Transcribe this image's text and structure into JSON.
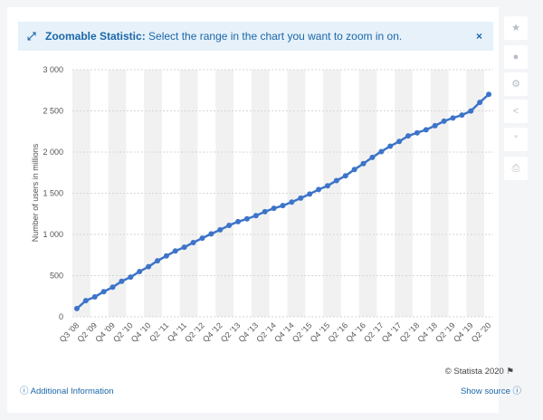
{
  "banner": {
    "title": "Zoomable Statistic:",
    "text": "Select the range in the chart you want to zoom in on."
  },
  "footer": {
    "copyright": "© Statista 2020",
    "additional_info": "Additional Information",
    "show_source": "Show source"
  },
  "chart_data": {
    "type": "line",
    "y_label": "Number of users in millions",
    "color": "#3d74c9",
    "categories": [
      "Q3 '08",
      null,
      "Q2 '09",
      null,
      "Q4 '09",
      null,
      "Q2 '10",
      null,
      "Q4 '10",
      null,
      "Q2 '11",
      null,
      "Q4 '11",
      null,
      "Q2 '12",
      null,
      "Q4 '12",
      null,
      "Q2 '13",
      null,
      "Q4 '13",
      null,
      "Q2 '14",
      null,
      "Q4 '14",
      null,
      "Q2 '15",
      null,
      "Q4 '15",
      null,
      "Q2 '16",
      null,
      "Q4 '16",
      null,
      "Q2 '17",
      null,
      "Q4 '17",
      null,
      "Q2 '18",
      null,
      "Q4 '18",
      null,
      "Q2 '19",
      null,
      "Q4 '19",
      null,
      "Q2 '20"
    ],
    "values": [
      100,
      197,
      242,
      305,
      360,
      431,
      482,
      550,
      608,
      680,
      739,
      800,
      845,
      901,
      955,
      1007,
      1056,
      1110,
      1155,
      1189,
      1228,
      1276,
      1317,
      1350,
      1393,
      1441,
      1490,
      1545,
      1591,
      1654,
      1712,
      1788,
      1860,
      1936,
      2006,
      2072,
      2129,
      2196,
      2234,
      2271,
      2320,
      2375,
      2414,
      2449,
      2498,
      2603,
      2701
    ],
    "ylim": [
      0,
      3000
    ],
    "yticks": [
      0,
      500,
      {
        "value": 1000,
        "label": "1 000"
      },
      {
        "value": 1500,
        "label": "1 500"
      },
      {
        "value": 2000,
        "label": "2 000"
      },
      {
        "value": 2500,
        "label": "2 500"
      },
      {
        "value": 3000,
        "label": "3 000"
      }
    ],
    "grid": true
  }
}
